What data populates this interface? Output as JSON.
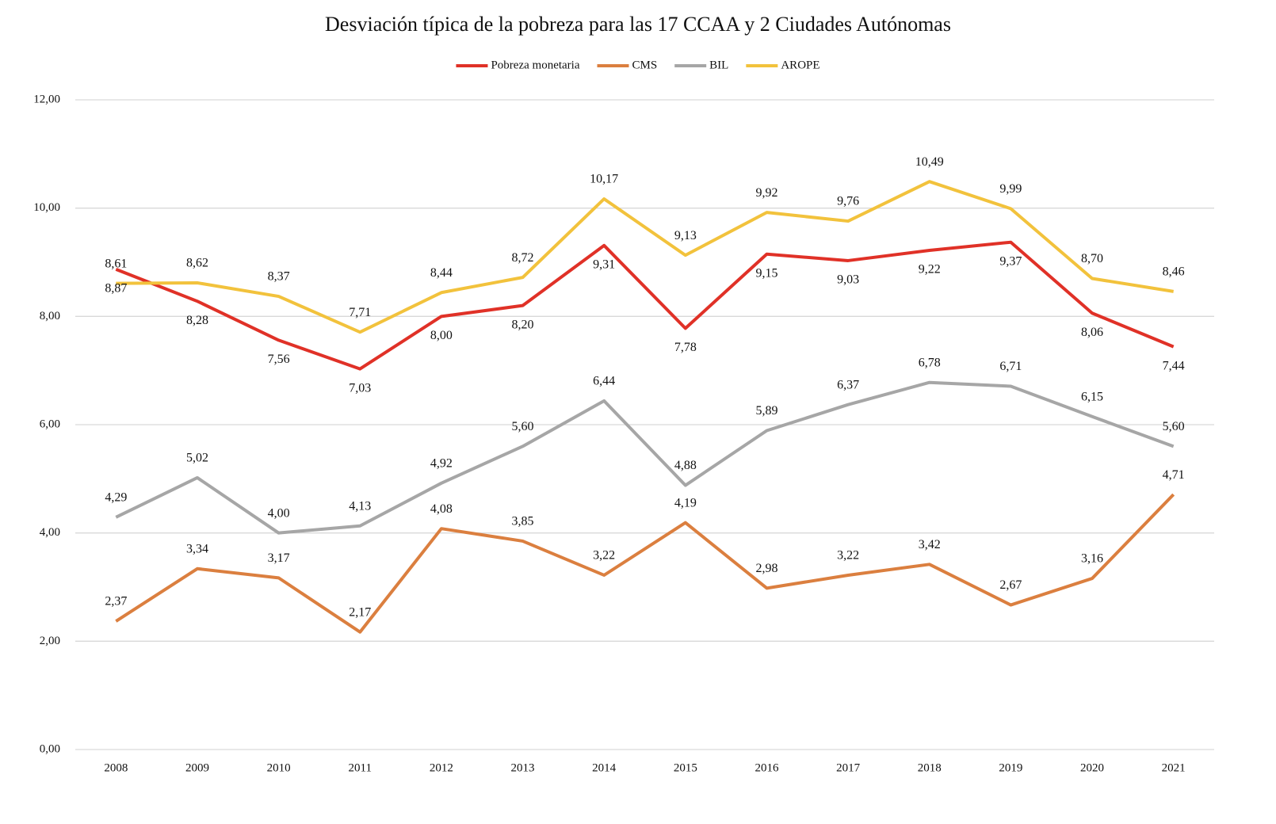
{
  "chart_data": {
    "type": "line",
    "title": "Desviación típica de la pobreza para las 17 CCAA y 2 Ciudades Autónomas",
    "categories": [
      "2008",
      "2009",
      "2010",
      "2011",
      "2012",
      "2013",
      "2014",
      "2015",
      "2016",
      "2017",
      "2018",
      "2019",
      "2020",
      "2021"
    ],
    "ylim": [
      0,
      12
    ],
    "yticks": [
      {
        "value": 0,
        "label": "0,00"
      },
      {
        "value": 2,
        "label": "2,00"
      },
      {
        "value": 4,
        "label": "4,00"
      },
      {
        "value": 6,
        "label": "6,00"
      },
      {
        "value": 8,
        "label": "8,00"
      },
      {
        "value": 10,
        "label": "10,00"
      },
      {
        "value": 12,
        "label": "12,00"
      }
    ],
    "grid": true,
    "legend": "top",
    "series": [
      {
        "name": "Pobreza monetaria",
        "color": "#e03127",
        "values": [
          8.87,
          8.28,
          7.56,
          7.03,
          8.0,
          8.2,
          9.31,
          7.78,
          9.15,
          9.03,
          9.22,
          9.37,
          8.06,
          7.44
        ],
        "value_labels": [
          "8,87",
          "8,28",
          "7,56",
          "7,03",
          "8,00",
          "8,20",
          "9,31",
          "7,78",
          "9,15",
          "9,03",
          "9,22",
          "9,37",
          "8,06",
          "7,44"
        ]
      },
      {
        "name": "CMS",
        "color": "#db7f3f",
        "values": [
          2.37,
          3.34,
          3.17,
          2.17,
          4.08,
          3.85,
          3.22,
          4.19,
          2.98,
          3.22,
          3.42,
          2.67,
          3.16,
          4.71
        ],
        "value_labels": [
          "2,37",
          "3,34",
          "3,17",
          "2,17",
          "4,08",
          "3,85",
          "3,22",
          "4,19",
          "2,98",
          "3,22",
          "3,42",
          "2,67",
          "3,16",
          "4,71"
        ]
      },
      {
        "name": "BIL",
        "color": "#a6a6a6",
        "values": [
          4.29,
          5.02,
          4.0,
          4.13,
          4.92,
          5.6,
          6.44,
          4.88,
          5.89,
          6.37,
          6.78,
          6.71,
          6.15,
          5.6
        ],
        "value_labels": [
          "4,29",
          "5,02",
          "4,00",
          "4,13",
          "4,92",
          "5,60",
          "6,44",
          "4,88",
          "5,89",
          "6,37",
          "6,78",
          "6,71",
          "6,15",
          "5,60"
        ]
      },
      {
        "name": "AROPE",
        "color": "#f2c23c",
        "values": [
          8.61,
          8.62,
          8.37,
          7.71,
          8.44,
          8.72,
          10.17,
          9.13,
          9.92,
          9.76,
          10.49,
          9.99,
          8.7,
          8.46
        ],
        "value_labels": [
          "8,61",
          "8,62",
          "8,37",
          "7,71",
          "8,44",
          "8,72",
          "10,17",
          "9,13",
          "9,92",
          "9,76",
          "10,49",
          "9,99",
          "8,70",
          "8,46"
        ]
      }
    ]
  }
}
